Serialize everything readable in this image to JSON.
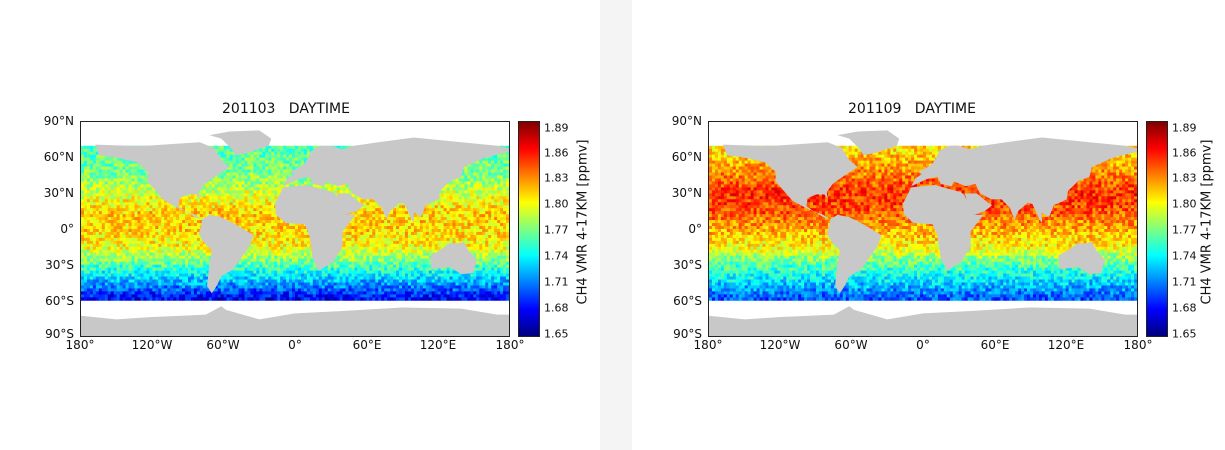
{
  "panels": [
    {
      "title": "201103   DAYTIME",
      "lat_labels": [
        "90°N",
        "60°N",
        "30°N",
        "0°",
        "30°S",
        "60°S",
        "90°S"
      ],
      "lon_labels": [
        "180°",
        "120°W",
        "60°W",
        "0°",
        "60°E",
        "120°E",
        "180°"
      ],
      "colorbar": {
        "label": "CH4 VMR 4-17KM [ppmv]",
        "ticks": [
          "1.89",
          "1.86",
          "1.83",
          "1.80",
          "1.77",
          "1.74",
          "1.71",
          "1.68",
          "1.65"
        ]
      },
      "field": {
        "min": 1.65,
        "max": 1.89,
        "band_means": [
          {
            "lat": 65,
            "value": 1.76
          },
          {
            "lat": 45,
            "value": 1.77
          },
          {
            "lat": 30,
            "value": 1.79
          },
          {
            "lat": 15,
            "value": 1.81
          },
          {
            "lat": 0,
            "value": 1.81
          },
          {
            "lat": -15,
            "value": 1.8
          },
          {
            "lat": -30,
            "value": 1.76
          },
          {
            "lat": -45,
            "value": 1.72
          },
          {
            "lat": -58,
            "value": 1.68
          }
        ]
      }
    },
    {
      "title": "201109   DAYTIME",
      "lat_labels": [
        "90°N",
        "60°N",
        "30°N",
        "0°",
        "30°S",
        "60°S",
        "90°S"
      ],
      "lon_labels": [
        "180°",
        "120°W",
        "60°W",
        "0°",
        "60°E",
        "120°E",
        "180°"
      ],
      "colorbar": {
        "label": "CH4 VMR 4-17KM [ppmv]",
        "ticks": [
          "1.89",
          "1.86",
          "1.83",
          "1.80",
          "1.77",
          "1.74",
          "1.71",
          "1.68",
          "1.65"
        ]
      },
      "field": {
        "min": 1.65,
        "max": 1.89,
        "band_means": [
          {
            "lat": 65,
            "value": 1.81
          },
          {
            "lat": 45,
            "value": 1.83
          },
          {
            "lat": 30,
            "value": 1.85
          },
          {
            "lat": 15,
            "value": 1.84
          },
          {
            "lat": 0,
            "value": 1.82
          },
          {
            "lat": -15,
            "value": 1.8
          },
          {
            "lat": -30,
            "value": 1.76
          },
          {
            "lat": -45,
            "value": 1.73
          },
          {
            "lat": -58,
            "value": 1.7
          }
        ]
      }
    }
  ],
  "colors": {
    "land": "#c8c8c8",
    "no_data": "#ffffff",
    "colormap": [
      "#00007f",
      "#0000ff",
      "#007fff",
      "#00ffff",
      "#7fff7f",
      "#ffff00",
      "#ff7f00",
      "#ff0000",
      "#7f0000"
    ]
  }
}
